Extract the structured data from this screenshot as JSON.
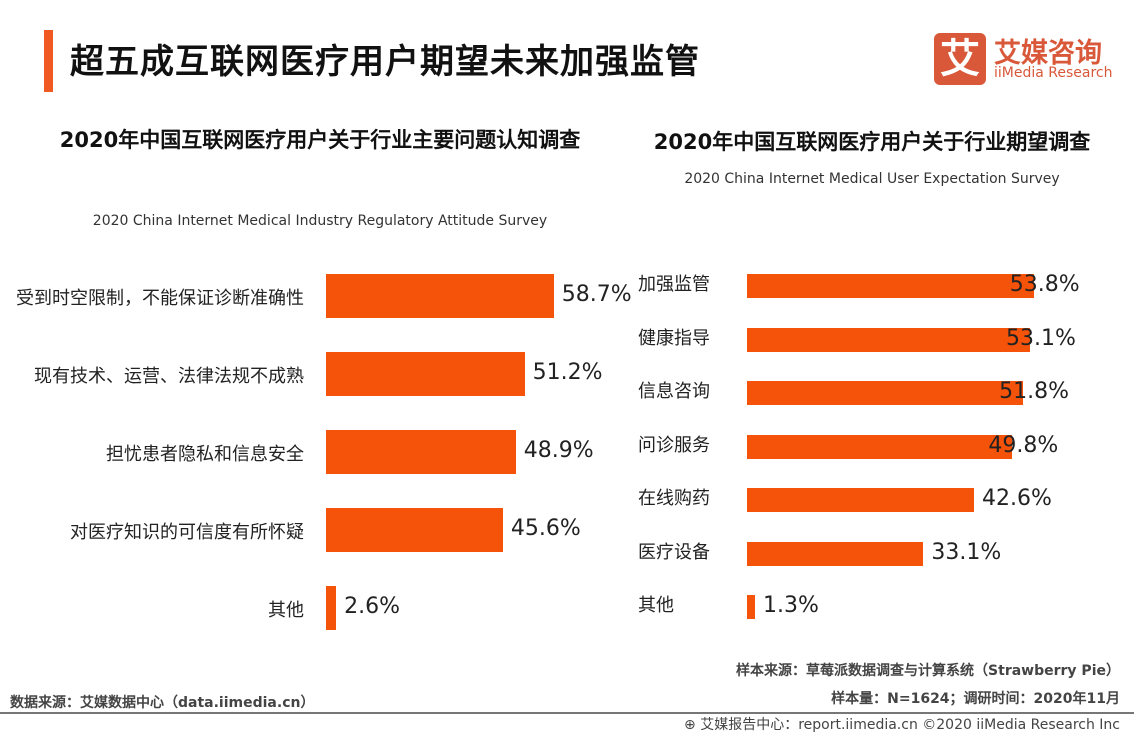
{
  "header": {
    "title": "超五成互联网医疗用户期望未来加强监管",
    "accent_color": "#f05a22"
  },
  "logo": {
    "glyph": "艾",
    "cn": "艾媒咨询",
    "en": "iiMedia Research"
  },
  "chart_data": [
    {
      "type": "bar",
      "orientation": "horizontal",
      "title": "2020年中国互联网医疗用户关于行业主要问题认知调查",
      "subtitle": "2020 China Internet Medical Industry Regulatory Attitude Survey",
      "categories": [
        "受到时空限制，不能保证诊断准确性",
        "现有技术、运营、法律法规不成熟",
        "担忧患者隐私和信息安全",
        "对医疗知识的可信度有所怀疑",
        "其他"
      ],
      "values": [
        58.7,
        51.2,
        48.9,
        45.6,
        2.6
      ],
      "labels": [
        "58.7%",
        "51.2%",
        "48.9%",
        "45.6%",
        "2.6%"
      ],
      "color": "#f5520a",
      "grid": false
    },
    {
      "type": "bar",
      "orientation": "horizontal",
      "title": "2020年中国互联网医疗用户关于行业期望调查",
      "subtitle": "2020 China Internet Medical User Expectation Survey",
      "categories": [
        "加强监管",
        "健康指导",
        "信息咨询",
        "问诊服务",
        "在线购药",
        "医疗设备",
        "其他"
      ],
      "values": [
        53.8,
        53.1,
        51.8,
        49.8,
        42.6,
        33.1,
        1.3
      ],
      "labels": [
        "53.8%",
        "53.1%",
        "51.8%",
        "49.8%",
        "42.6%",
        "33.1%",
        "1.3%"
      ],
      "color": "#f5520a",
      "grid": false
    }
  ],
  "footer": {
    "source_left": "数据来源：艾媒数据中心（data.iimedia.cn）",
    "sample_source": "样本来源：草莓派数据调查与计算系统（Strawberry Pie）",
    "sample_size": "样本量：N=1624；调研时间：2020年11月",
    "report": "艾媒报告中心：report.iimedia.cn   ©2020  iiMedia Research  Inc"
  }
}
